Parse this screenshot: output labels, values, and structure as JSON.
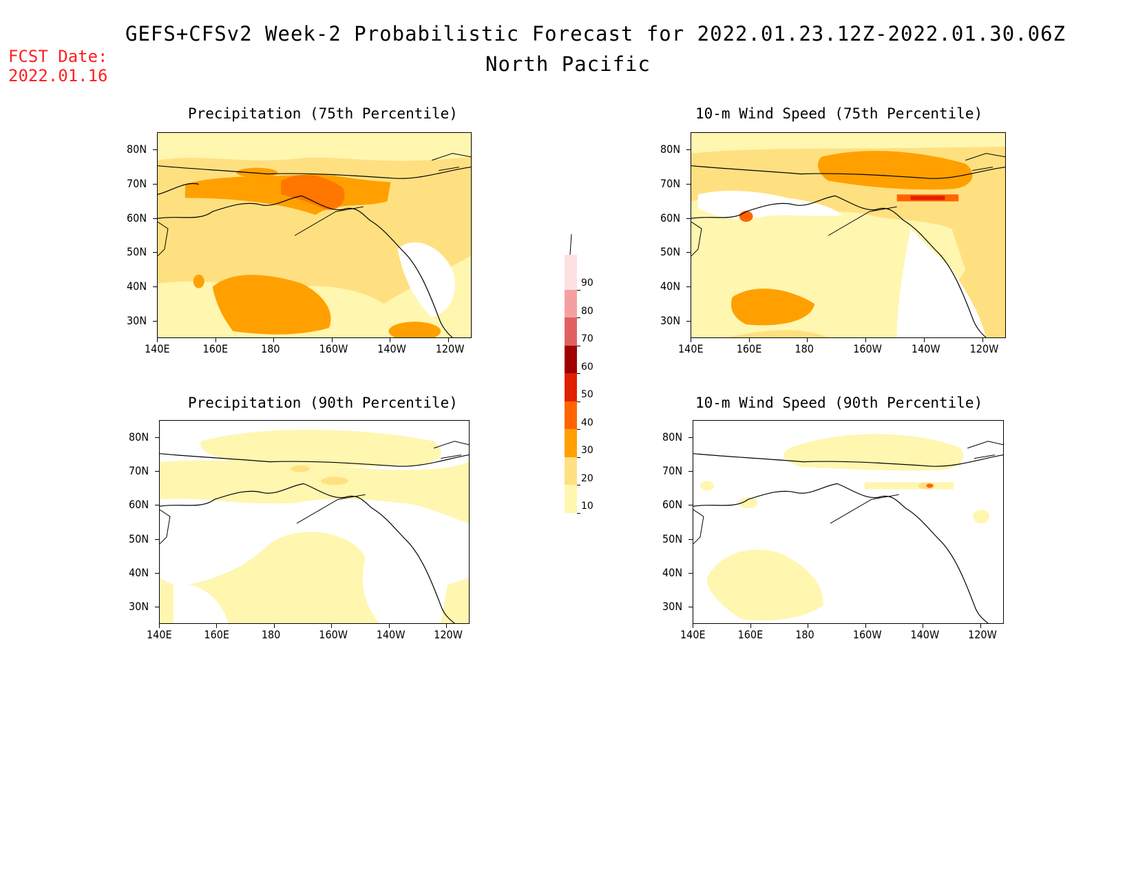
{
  "header": {
    "title": "GEFS+CFSv2 Week-2 Probabilistic Forecast for 2022.01.23.12Z-2022.01.30.06Z",
    "subtitle": "North Pacific",
    "fcst_label": "FCST Date:",
    "fcst_date": "2022.01.16"
  },
  "axes": {
    "lat_labels": [
      "80N",
      "70N",
      "60N",
      "50N",
      "40N",
      "30N"
    ],
    "lon_labels": [
      "140E",
      "160E",
      "180",
      "160W",
      "140W",
      "120W"
    ]
  },
  "panels": [
    {
      "id": "precip75",
      "title": "Precipitation (75th Percentile)"
    },
    {
      "id": "wind75",
      "title": "10-m Wind Speed (75th Percentile)"
    },
    {
      "id": "precip90",
      "title": "Precipitation (90th Percentile)"
    },
    {
      "id": "wind90",
      "title": "10-m Wind Speed (90th Percentile)"
    }
  ],
  "colorbar": {
    "labels": [
      "90",
      "80",
      "70",
      "60",
      "50",
      "40",
      "30",
      "20",
      "10"
    ],
    "colors": [
      "#fde0e0",
      "#f4a0a0",
      "#e06060",
      "#a00000",
      "#e02000",
      "#ff6400",
      "#ffa000",
      "#ffe080",
      "#fff6b0"
    ]
  }
}
